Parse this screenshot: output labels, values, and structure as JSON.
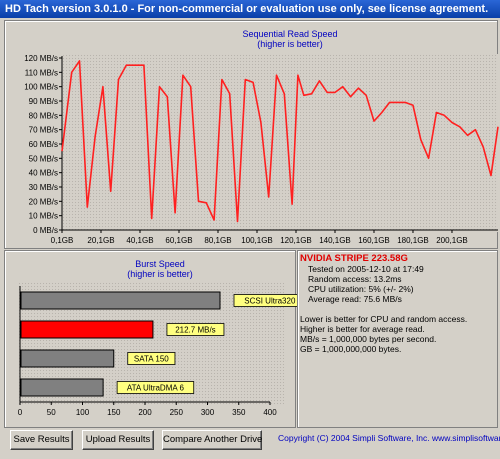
{
  "window": {
    "title": "HD Tach version 3.0.1.0  - For non-commercial or evaluation use only, see license agreement."
  },
  "seq_chart": {
    "title_line1": "Sequential Read Speed",
    "title_line2": "(higher is better)"
  },
  "burst_chart": {
    "title_line1": "Burst Speed",
    "title_line2": "(higher is better)"
  },
  "info": {
    "drive": "NVIDIA STRIPE  223.58G",
    "tested": "Tested on 2005-12-10 at 17:49",
    "random_access": "Random access: 13.2ms",
    "cpu": "CPU utilization: 5% (+/- 2%)",
    "avg_read": "Average read: 75.6 MB/s",
    "note1": "Lower is better for CPU and random access.",
    "note2": "Higher is better for average read.",
    "note3": "MB/s = 1,000,000 bytes per second.",
    "note4": "GB = 1,000,000,000 bytes."
  },
  "buttons": {
    "save": "Save Results",
    "upload": "Upload Results",
    "compare": "Compare Another Drive"
  },
  "copyright": "Copyright (C) 2004 Simpli Software, Inc. www.simplisoftware.com",
  "colors": {
    "line": "#ff2020",
    "burst_highlight": "#ff0000",
    "burst_other": "#808080",
    "label_bg": "#ffff80",
    "accent_text": "#0000c0"
  },
  "chart_data": [
    {
      "type": "line",
      "title": "Sequential Read Speed",
      "subtitle": "(higher is better)",
      "ylim": [
        0,
        120
      ],
      "y_ticks": [
        "0 MB/s",
        "10 MB/s",
        "20 MB/s",
        "30 MB/s",
        "40 MB/s",
        "50 MB/s",
        "60 MB/s",
        "70 MB/s",
        "80 MB/s",
        "90 MB/s",
        "100 MB/s",
        "110 MB/s",
        "120 MB/s"
      ],
      "x_ticks": [
        "0,1GB",
        "20,1GB",
        "40,1GB",
        "60,1GB",
        "80,1GB",
        "100,1GB",
        "120,1GB",
        "140,1GB",
        "160,1GB",
        "180,1GB",
        "200,1GB"
      ],
      "xlim": [
        0,
        223.6
      ],
      "series": [
        {
          "x": [
            0,
            5,
            9,
            13,
            17,
            21,
            25,
            29,
            33,
            38,
            42,
            46,
            50,
            54,
            58,
            62,
            66,
            70,
            74,
            78,
            82,
            86,
            90,
            94,
            98,
            102,
            106,
            110,
            114,
            118,
            121,
            124,
            128,
            132,
            136,
            140,
            144,
            148,
            152,
            156,
            160,
            164,
            168,
            172,
            176,
            180,
            184,
            188,
            192,
            196,
            200,
            204,
            208,
            212,
            216,
            220,
            223.6
          ],
          "y": [
            55,
            110,
            118,
            16,
            65,
            100,
            27,
            105,
            115,
            115,
            115,
            8,
            100,
            93,
            12,
            108,
            100,
            20,
            19,
            7,
            105,
            95,
            6,
            105,
            103,
            75,
            23,
            108,
            95,
            18,
            108,
            94,
            95,
            104,
            96,
            96,
            100,
            93,
            99,
            94,
            76,
            82,
            89,
            89,
            89,
            87,
            63,
            50,
            82,
            80,
            75,
            72,
            66,
            70,
            58,
            38,
            72
          ]
        }
      ]
    },
    {
      "type": "bar",
      "title": "Burst Speed",
      "subtitle": "(higher is better)",
      "ylim": [
        0,
        400
      ],
      "x_ticks": [
        "0",
        "50",
        "100",
        "150",
        "200",
        "250",
        "300",
        "350",
        "400"
      ],
      "categories": [
        "SCSI Ultra320",
        "212.7 MB/s",
        "SATA 150",
        "ATA UltraDMA 6"
      ],
      "values": [
        320,
        212.7,
        150,
        133
      ],
      "highlight_index": 1
    }
  ]
}
